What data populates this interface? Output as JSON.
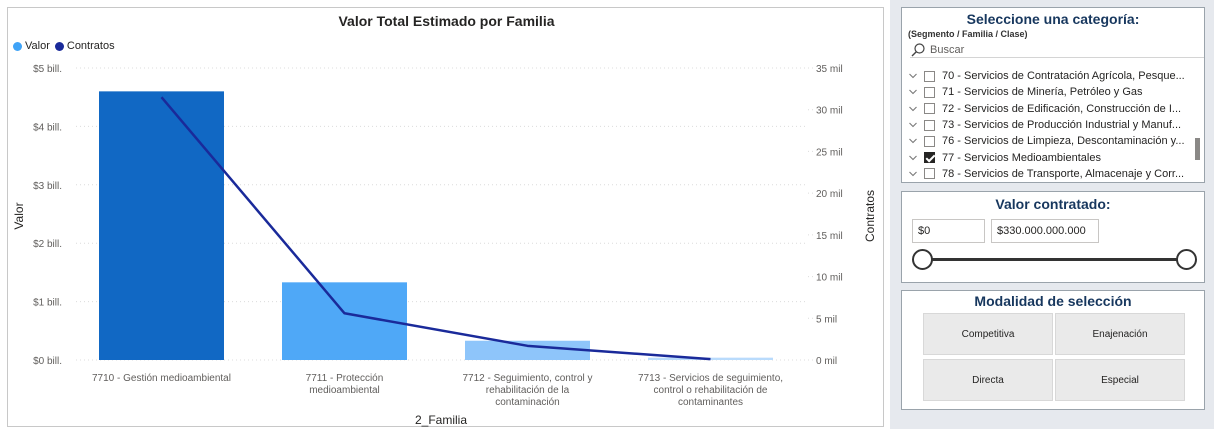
{
  "chart": {
    "title": "Valor Total Estimado por Familia",
    "legend": [
      {
        "name": "Valor",
        "color": "#3fa3f7"
      },
      {
        "name": "Contratos",
        "color": "#1a2a9a"
      }
    ],
    "y_left_label": "Valor",
    "y_right_label": "Contratos",
    "x_label": "2_Familia"
  },
  "chart_data": {
    "type": "bar",
    "title": "Valor Total Estimado por Familia",
    "xlabel": "2_Familia",
    "ylabel": "Valor",
    "y2label": "Contratos",
    "categories": [
      "7710 - Gestión medioambiental",
      "7711 - Protección medioambiental",
      "7712 - Seguimiento, control y rehabilitación de la contaminación",
      "7713 - Servicios de seguimiento, control o rehabilitación de contaminantes"
    ],
    "category_lines": [
      [
        "7710 - Gestión medioambiental"
      ],
      [
        "7711 - Protección",
        "medioambiental"
      ],
      [
        "7712 - Seguimiento, control y",
        "rehabilitación de la",
        "contaminación"
      ],
      [
        "7713 - Servicios de seguimiento,",
        "control o rehabilitación de",
        "contaminantes"
      ]
    ],
    "series": [
      {
        "name": "Valor",
        "axis": "left",
        "type": "bar",
        "values": [
          4.6,
          1.33,
          0.33,
          0.04
        ],
        "unit": "bill."
      },
      {
        "name": "Contratos",
        "axis": "right",
        "type": "line",
        "values": [
          31500,
          5600,
          1700,
          100
        ]
      }
    ],
    "bar_colors": [
      "#1168c4",
      "#4fa8f7",
      "#8ec5fa",
      "#b9dbfc"
    ],
    "line_color": "#1a2a9a",
    "ylim": [
      0,
      5
    ],
    "y2lim": [
      0,
      35000
    ],
    "y_ticks": [
      "$0 bill.",
      "$1 bill.",
      "$2 bill.",
      "$3 bill.",
      "$4 bill.",
      "$5 bill."
    ],
    "y2_ticks": [
      "0 mil",
      "5 mil",
      "10 mil",
      "15 mil",
      "20 mil",
      "25 mil",
      "30 mil",
      "35 mil"
    ],
    "grid": true,
    "legend_position": "top-left"
  },
  "category_slicer": {
    "title": "Seleccione una categoría:",
    "subtitle": "(Segmento / Familia / Clase)",
    "search_placeholder": "Buscar",
    "items": [
      {
        "label": "70 - Servicios de Contratación Agrícola, Pesque...",
        "checked": false
      },
      {
        "label": "71 - Servicios de Minería, Petróleo y Gas",
        "checked": false
      },
      {
        "label": "72 - Servicios de Edificación, Construcción de I...",
        "checked": false
      },
      {
        "label": "73 - Servicios de Producción Industrial y Manuf...",
        "checked": false
      },
      {
        "label": "76 - Servicios de Limpieza, Descontaminación y...",
        "checked": false
      },
      {
        "label": "77 - Servicios Medioambientales",
        "checked": true
      },
      {
        "label": "78 - Servicios de Transporte, Almacenaje y Corr...",
        "checked": false
      }
    ]
  },
  "value_slicer": {
    "title": "Valor contratado:",
    "min_value": "$0",
    "max_value": "$330.000.000.000",
    "range_low": 0,
    "range_high": 1
  },
  "modalidad": {
    "title": "Modalidad de selección",
    "options": [
      "Competitiva",
      "Enajenación",
      "Directa",
      "Especial"
    ]
  }
}
